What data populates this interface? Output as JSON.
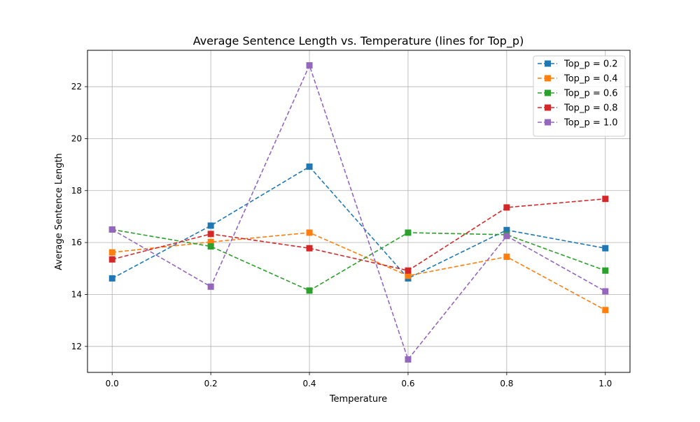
{
  "chart_data": {
    "type": "line",
    "title": "Average Sentence Length vs. Temperature (lines for Top_p)",
    "xlabel": "Temperature",
    "ylabel": "Average Sentence Length",
    "x": [
      0.0,
      0.2,
      0.4,
      0.6,
      0.8,
      1.0
    ],
    "xlim": [
      -0.05,
      1.05
    ],
    "ylim": [
      11.0,
      23.4
    ],
    "xticks": [
      0.0,
      0.2,
      0.4,
      0.6,
      0.8,
      1.0
    ],
    "xtick_labels": [
      "0.0",
      "0.2",
      "0.4",
      "0.6",
      "0.8",
      "1.0"
    ],
    "yticks": [
      12,
      14,
      16,
      18,
      20,
      22
    ],
    "ytick_labels": [
      "12",
      "14",
      "16",
      "18",
      "20",
      "22"
    ],
    "grid": true,
    "legend_position": "top-right",
    "line_style": "dashed",
    "marker": "square",
    "series": [
      {
        "name": "Top_p = 0.2",
        "color": "#1f77b4",
        "values": [
          14.62,
          16.65,
          18.92,
          14.62,
          16.48,
          15.78
        ]
      },
      {
        "name": "Top_p = 0.4",
        "color": "#ff7f0e",
        "values": [
          15.62,
          16.02,
          16.38,
          14.72,
          15.45,
          13.4
        ]
      },
      {
        "name": "Top_p = 0.6",
        "color": "#2ca02c",
        "values": [
          16.5,
          15.85,
          14.15,
          16.38,
          16.3,
          14.92
        ]
      },
      {
        "name": "Top_p = 0.8",
        "color": "#d62728",
        "values": [
          15.35,
          16.33,
          15.78,
          14.92,
          17.35,
          17.68
        ]
      },
      {
        "name": "Top_p = 1.0",
        "color": "#9467bd",
        "values": [
          16.5,
          14.3,
          22.82,
          11.5,
          16.25,
          14.12
        ]
      }
    ]
  }
}
